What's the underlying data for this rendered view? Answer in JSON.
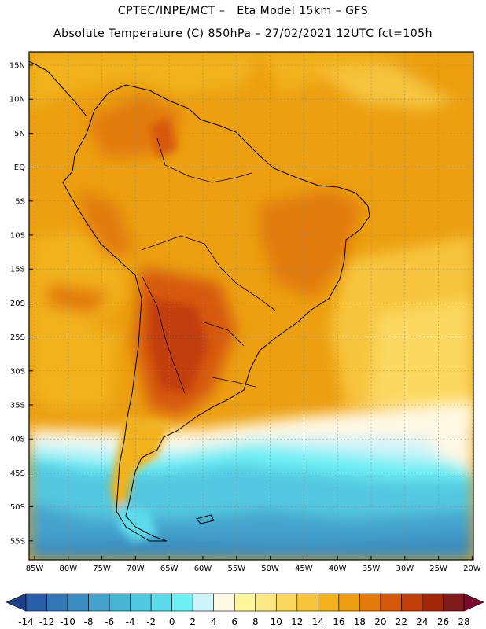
{
  "header": {
    "line1": "CPTEC/INPE/MCT –   Eta Model 15km – GFS",
    "line2": "Absolute Temperature (C) 850hPa – 27/02/2021 12UTC fct=105h"
  },
  "map": {
    "lat_labels": [
      "15N",
      "10N",
      "5N",
      "EQ",
      "5S",
      "10S",
      "15S",
      "20S",
      "25S",
      "30S",
      "35S",
      "40S",
      "45S",
      "50S",
      "55S"
    ],
    "lon_labels": [
      "85W",
      "80W",
      "75W",
      "70W",
      "65W",
      "60W",
      "55W",
      "50W",
      "45W",
      "40W",
      "35W",
      "30W",
      "25W",
      "20W"
    ]
  },
  "colorbar": {
    "labels": [
      "-14",
      "-12",
      "-10",
      "-8",
      "-6",
      "-4",
      "-2",
      "0",
      "2",
      "4",
      "6",
      "8",
      "10",
      "12",
      "14",
      "16",
      "18",
      "20",
      "22",
      "24",
      "26",
      "28"
    ],
    "colors": [
      "#1e3e8c",
      "#2a5ea6",
      "#3376b4",
      "#3b8cc0",
      "#45a2cc",
      "#4ab6d6",
      "#52c8e0",
      "#5cdceb",
      "#6ef0f5",
      "#ccf4fa",
      "#fff8e4",
      "#fff59b",
      "#fde886",
      "#fbd85e",
      "#f6c53c",
      "#f1b21d",
      "#ec9f10",
      "#e27b0c",
      "#d6580a",
      "#c23e08",
      "#a02808",
      "#7e1c1c",
      "#7a0a2e"
    ]
  }
}
